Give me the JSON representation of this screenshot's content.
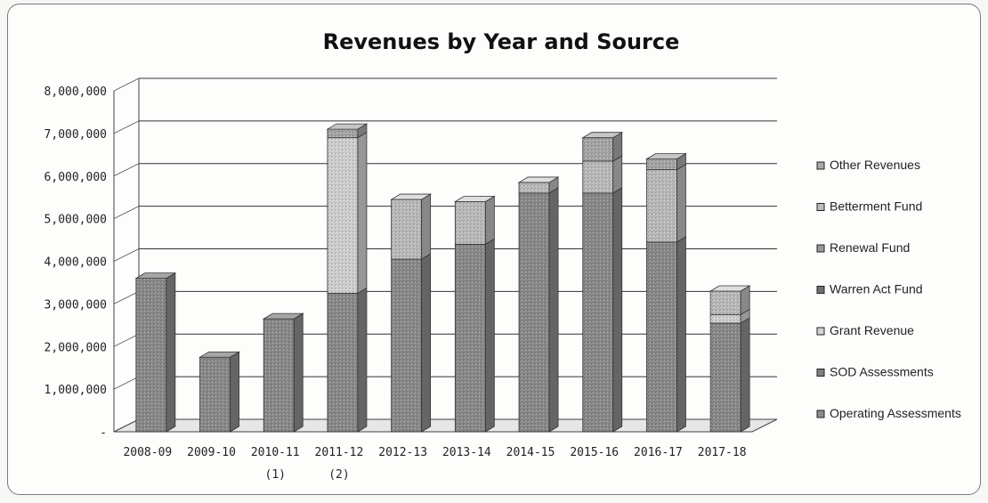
{
  "chart_data": {
    "type": "bar",
    "stacked": true,
    "three_d": true,
    "title": "Revenues by Year and Source",
    "categories": [
      "2008-09",
      "2009-10",
      "2010-11",
      "2011-12",
      "2012-13",
      "2013-14",
      "2014-15",
      "2015-16",
      "2016-17",
      "2017-18"
    ],
    "category_notes": [
      "",
      "",
      "(1)",
      "(2)",
      "",
      "",
      "",
      "",
      "",
      ""
    ],
    "ylim": [
      0,
      8000000
    ],
    "y_ticks": [
      "-",
      "1,000,000",
      "2,000,000",
      "3,000,000",
      "4,000,000",
      "5,000,000",
      "6,000,000",
      "7,000,000",
      "8,000,000"
    ],
    "y_tick_values": [
      0,
      1000000,
      2000000,
      3000000,
      4000000,
      5000000,
      6000000,
      7000000,
      8000000
    ],
    "grid": true,
    "legend_position": "right",
    "series": [
      {
        "name": "Operating Assessments",
        "color": "#8c8c8c",
        "values": [
          3600000,
          1750000,
          2650000,
          3250000,
          4050000,
          4400000,
          5600000,
          5600000,
          4450000,
          2550000
        ]
      },
      {
        "name": "SOD Assessments",
        "color": "#7f7f7f",
        "values": [
          0,
          0,
          0,
          0,
          0,
          0,
          0,
          0,
          0,
          0
        ]
      },
      {
        "name": "Grant Revenue",
        "color": "#d2d2d2",
        "values": [
          0,
          0,
          0,
          3650000,
          0,
          0,
          0,
          0,
          0,
          200000
        ]
      },
      {
        "name": "Warren Act Fund",
        "color": "#6f6f6f",
        "values": [
          0,
          0,
          0,
          0,
          0,
          0,
          0,
          0,
          0,
          0
        ]
      },
      {
        "name": "Renewal Fund",
        "color": "#999999",
        "values": [
          0,
          0,
          0,
          0,
          0,
          0,
          0,
          0,
          0,
          0
        ]
      },
      {
        "name": "Betterment Fund",
        "color": "#bdbdbd",
        "values": [
          0,
          0,
          0,
          0,
          1400000,
          1000000,
          250000,
          750000,
          1700000,
          550000
        ]
      },
      {
        "name": "Other Revenues",
        "color": "#a8a8a8",
        "values": [
          0,
          0,
          0,
          200000,
          0,
          0,
          0,
          550000,
          250000,
          0
        ]
      }
    ]
  }
}
